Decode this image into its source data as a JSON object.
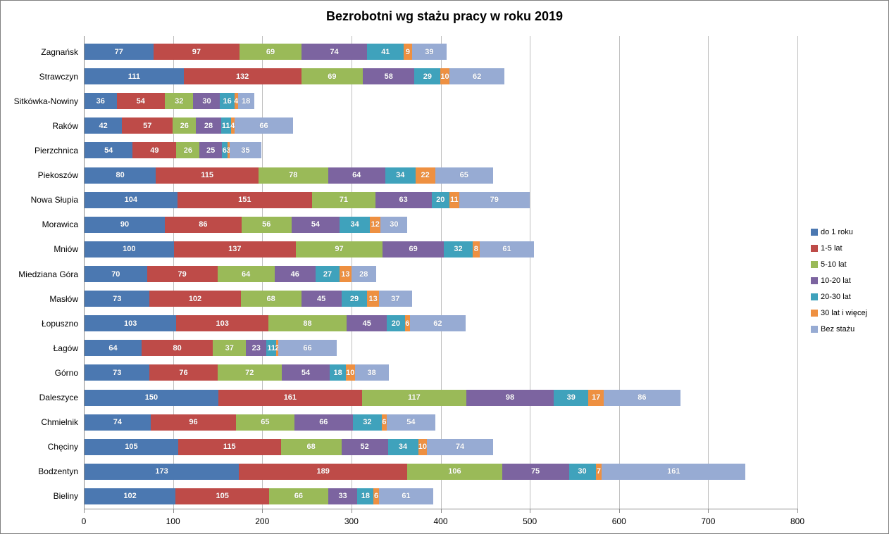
{
  "page": {
    "background": "#FFFFFF",
    "border_color": "#808080",
    "gridline_color": "#BFBFBF",
    "axis_color": "#8C8C8C"
  },
  "chart_data": {
    "type": "bar",
    "variant": "horizontal-stacked",
    "title": "Bezrobotni wg stażu pracy w roku 2019",
    "xlabel": "",
    "ylabel": "",
    "xlim": [
      0,
      800
    ],
    "xticks": [
      0,
      100,
      200,
      300,
      400,
      500,
      600,
      700,
      800
    ],
    "grid": true,
    "legend_position": "right",
    "data_labels": "inside-center-white",
    "categories": [
      "Zagnańsk",
      "Strawczyn",
      "Sitkówka-Nowiny",
      "Raków",
      "Pierzchnica",
      "Piekoszów",
      "Nowa Słupia",
      "Morawica",
      "Mniów",
      "Miedziana Góra",
      "Masłów",
      "Łopuszno",
      "Łagów",
      "Górno",
      "Daleszyce",
      "Chmielnik",
      "Chęciny",
      "Bodzentyn",
      "Bieliny"
    ],
    "series": [
      {
        "name": "do 1 roku",
        "color": "#4B78B1",
        "values": [
          77,
          111,
          36,
          42,
          54,
          80,
          104,
          90,
          100,
          70,
          73,
          103,
          64,
          73,
          150,
          74,
          105,
          173,
          102
        ]
      },
      {
        "name": "1-5 lat",
        "color": "#BE4B48",
        "values": [
          97,
          132,
          54,
          57,
          49,
          115,
          151,
          86,
          137,
          79,
          102,
          103,
          80,
          76,
          161,
          96,
          115,
          189,
          105
        ]
      },
      {
        "name": "5-10 lat",
        "color": "#9ABA58",
        "values": [
          69,
          69,
          32,
          26,
          26,
          78,
          71,
          56,
          97,
          64,
          68,
          88,
          37,
          72,
          117,
          65,
          68,
          106,
          66
        ]
      },
      {
        "name": "10-20 lat",
        "color": "#7C64A0",
        "values": [
          74,
          58,
          30,
          28,
          25,
          64,
          63,
          54,
          69,
          46,
          45,
          45,
          23,
          54,
          98,
          66,
          52,
          75,
          33
        ]
      },
      {
        "name": "20-30 lat",
        "color": "#3FA2BC",
        "values": [
          41,
          29,
          16,
          11,
          6,
          34,
          20,
          34,
          32,
          27,
          29,
          20,
          11,
          18,
          39,
          32,
          34,
          30,
          18
        ]
      },
      {
        "name": "30 lat i więcej",
        "color": "#EE9041",
        "values": [
          9,
          10,
          4,
          4,
          3,
          22,
          11,
          12,
          8,
          13,
          13,
          6,
          2,
          10,
          17,
          6,
          10,
          7,
          6
        ]
      },
      {
        "name": "Bez stażu",
        "color": "#97ABD3",
        "values": [
          39,
          62,
          18,
          66,
          35,
          65,
          79,
          30,
          61,
          28,
          37,
          62,
          66,
          38,
          86,
          54,
          74,
          161,
          61
        ]
      }
    ]
  }
}
